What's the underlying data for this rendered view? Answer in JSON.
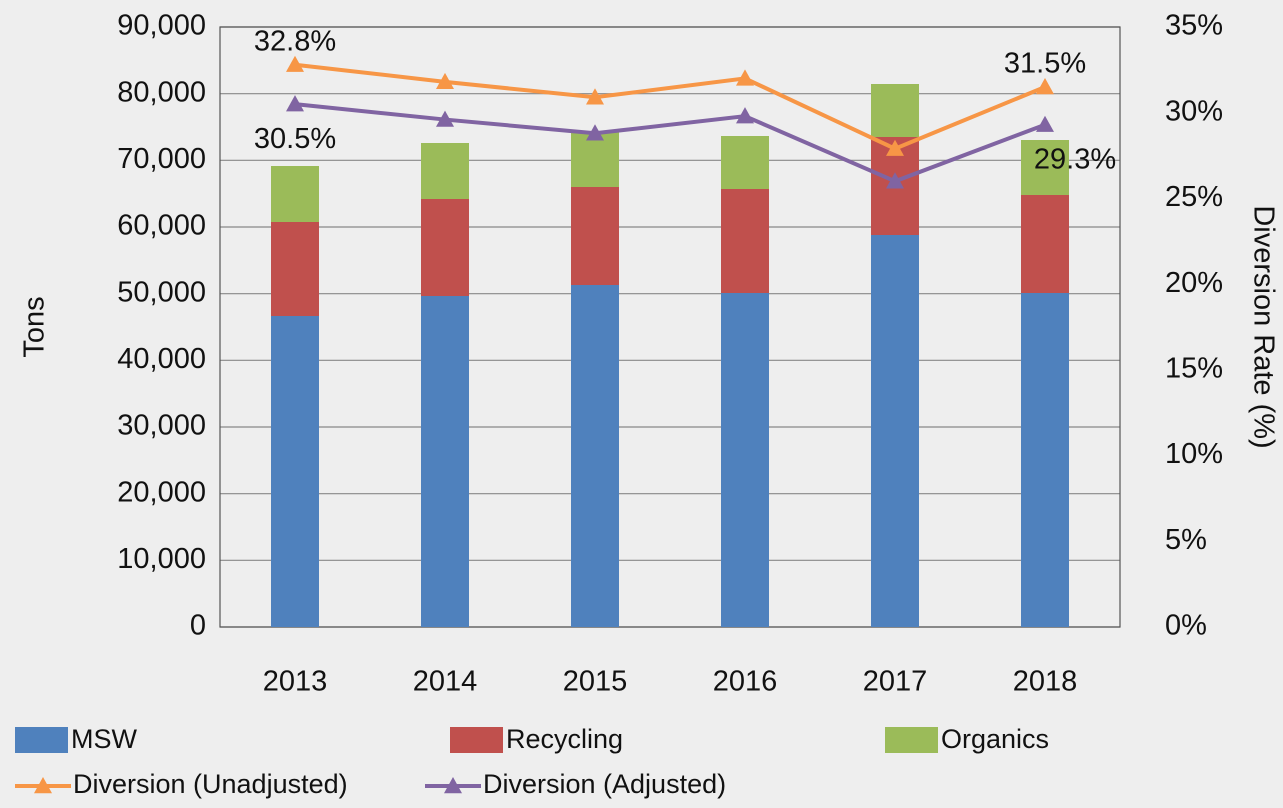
{
  "chart_data": {
    "type": "bar",
    "stacked": true,
    "categories": [
      "2013",
      "2014",
      "2015",
      "2016",
      "2017",
      "2018"
    ],
    "y_label": "Tons",
    "y2_label": "Diversion Rate (%)",
    "ylim": [
      0,
      90000
    ],
    "yticks": [
      0,
      {
        "value": 10000,
        "label": "10,000"
      },
      {
        "value": 20000,
        "label": "20,000"
      },
      {
        "value": 30000,
        "label": "30,000"
      },
      {
        "value": 40000,
        "label": "40,000"
      },
      {
        "value": 50000,
        "label": "50,000"
      },
      {
        "value": 60000,
        "label": "60,000"
      },
      {
        "value": 70000,
        "label": "70,000"
      },
      {
        "value": 80000,
        "label": "80,000"
      },
      {
        "value": 90000,
        "label": "90,000"
      }
    ],
    "y2lim": [
      0,
      35
    ],
    "y2ticks": [
      {
        "value": 0,
        "label": "0%"
      },
      {
        "value": 5,
        "label": "5%"
      },
      {
        "value": 10,
        "label": "10%"
      },
      {
        "value": 15,
        "label": "15%"
      },
      {
        "value": 20,
        "label": "20%"
      },
      {
        "value": 25,
        "label": "25%"
      },
      {
        "value": 30,
        "label": "30%"
      },
      {
        "value": 35,
        "label": "35%"
      }
    ],
    "grid": true,
    "legend": "bottom",
    "series": [
      {
        "name": "MSW",
        "type": "bar",
        "color": "#4f81bd",
        "values": [
          46650,
          49650,
          51300,
          50100,
          58800,
          50100
        ]
      },
      {
        "name": "Recycling",
        "type": "bar",
        "color": "#c0504d",
        "values": [
          14100,
          14550,
          14700,
          15600,
          14700,
          14700
        ]
      },
      {
        "name": "Organics",
        "type": "bar",
        "color": "#9bbb59",
        "values": [
          8400,
          8400,
          8200,
          7950,
          7950,
          8250
        ]
      },
      {
        "name": "Diversion (Unadjusted)",
        "type": "line",
        "axis": "y2",
        "color": "#f79646",
        "values": [
          32.8,
          31.8,
          30.9,
          32.0,
          27.9,
          31.5
        ],
        "value_labels": [
          "32.8%",
          null,
          null,
          null,
          null,
          "31.5%"
        ]
      },
      {
        "name": "Diversion (Adjusted)",
        "type": "line",
        "axis": "y2",
        "color": "#8064a2",
        "values": [
          30.5,
          29.6,
          28.8,
          29.8,
          26.0,
          29.3
        ],
        "value_labels": [
          "30.5%",
          null,
          null,
          null,
          null,
          "29.3%"
        ]
      }
    ]
  }
}
